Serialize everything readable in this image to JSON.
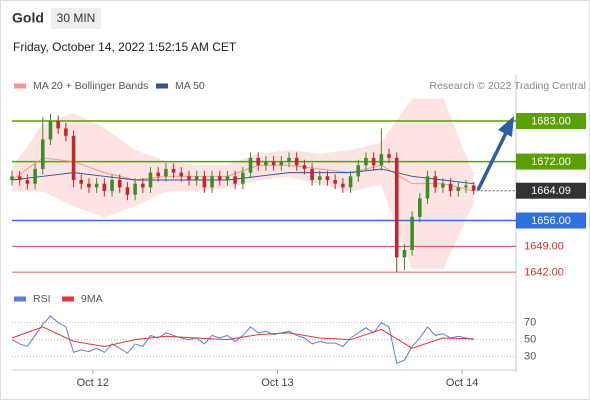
{
  "header": {
    "symbol": "Gold",
    "interval": "30 MIN",
    "timestamp": "Friday, October 14, 2022 1:52:15 AM CET"
  },
  "chart_data": [
    {
      "type": "candlestick",
      "source": "Research © 2022 Trading Central",
      "xlim": [
        0,
        131
      ],
      "ylim": [
        1638.5,
        1695.5
      ],
      "up_color": "#3d8b2a",
      "down_color": "#c0282d",
      "x": [
        0,
        2,
        4,
        6,
        8,
        10,
        12,
        14,
        16,
        18,
        20,
        22,
        24,
        26,
        28,
        30,
        32,
        34,
        36,
        38,
        40,
        42,
        44,
        46,
        48,
        50,
        52,
        54,
        56,
        58,
        60,
        62,
        64,
        66,
        68,
        70,
        72,
        74,
        76,
        78,
        80,
        82,
        84,
        86,
        88,
        90,
        92,
        94,
        96,
        98,
        100,
        102,
        104,
        106,
        108,
        110,
        112,
        114,
        116,
        118,
        120
      ],
      "open": [
        1667,
        1668,
        1667,
        1666,
        1670,
        1678,
        1683,
        1681,
        1679,
        1667,
        1666,
        1665,
        1666,
        1664,
        1667,
        1665,
        1663,
        1666,
        1665,
        1669,
        1668,
        1670,
        1669,
        1668,
        1667,
        1668,
        1665,
        1668,
        1667,
        1668,
        1666,
        1669,
        1673,
        1671,
        1672,
        1671,
        1672,
        1673,
        1671,
        1670,
        1667,
        1668,
        1667,
        1666,
        1665,
        1668,
        1671,
        1673,
        1671,
        1674,
        1673,
        1646,
        1648,
        1657,
        1662,
        1668,
        1665,
        1666,
        1664,
        1665,
        1665.5
      ],
      "high": [
        1669.5,
        1669.5,
        1668.5,
        1671.5,
        1684,
        1685,
        1684.5,
        1682.5,
        1680.5,
        1668.5,
        1667.5,
        1667.5,
        1667.5,
        1668.5,
        1668.5,
        1666.5,
        1667.5,
        1667.5,
        1670.5,
        1670.5,
        1671.5,
        1671.5,
        1670.5,
        1669.5,
        1669.5,
        1669.5,
        1669.5,
        1669.5,
        1669.5,
        1669.5,
        1670.5,
        1674.5,
        1674.5,
        1673.5,
        1673.5,
        1673.5,
        1674.5,
        1674.5,
        1672.5,
        1671.5,
        1669.5,
        1669.5,
        1668.5,
        1667.5,
        1669.5,
        1672.5,
        1674.5,
        1674.5,
        1681,
        1675.5,
        1674.5,
        1649.5,
        1658.5,
        1663.5,
        1669.5,
        1669.5,
        1667.5,
        1667.5,
        1666.5,
        1667,
        1666.5
      ],
      "low": [
        1665.5,
        1665.5,
        1664.5,
        1664.5,
        1668.5,
        1676.5,
        1679.5,
        1677.5,
        1665,
        1664.5,
        1663.5,
        1663.5,
        1662.5,
        1662.5,
        1663.5,
        1661.5,
        1661.5,
        1663.5,
        1663.5,
        1666.5,
        1666.5,
        1667.5,
        1666.5,
        1665.5,
        1665.5,
        1663.5,
        1663.5,
        1665.5,
        1665.5,
        1664.5,
        1664.5,
        1667.5,
        1669.5,
        1669.5,
        1669.5,
        1669.5,
        1670.5,
        1669.5,
        1668.5,
        1665.5,
        1665.5,
        1665.5,
        1664.5,
        1663.5,
        1663.5,
        1666.5,
        1669.5,
        1669.5,
        1669.5,
        1671.5,
        1642,
        1642.5,
        1646.5,
        1655.5,
        1660.5,
        1663.5,
        1663.5,
        1662.5,
        1662.5,
        1663.5,
        1663
      ],
      "close": [
        1668,
        1667,
        1666,
        1670,
        1678,
        1683,
        1681,
        1679,
        1667,
        1666,
        1665,
        1666,
        1664,
        1667,
        1665,
        1663,
        1666,
        1665,
        1669,
        1668,
        1670,
        1669,
        1668,
        1667,
        1668,
        1665,
        1668,
        1667,
        1668,
        1666,
        1669,
        1673,
        1671,
        1672,
        1671,
        1672,
        1673,
        1671,
        1670,
        1667,
        1668,
        1667,
        1666,
        1665,
        1668,
        1671,
        1673,
        1671,
        1674,
        1673,
        1646,
        1648,
        1657,
        1662,
        1668,
        1665,
        1666,
        1664,
        1665,
        1665.5,
        1664.09
      ],
      "last_price": 1664.09,
      "series": [
        {
          "name": "MA 20 + Bollinger Bands",
          "color": "#f4978e",
          "band_color": "#fde3e1",
          "x": [
            0,
            8,
            16,
            24,
            32,
            40,
            48,
            56,
            64,
            72,
            80,
            88,
            96,
            104,
            112,
            120
          ],
          "values": [
            1667,
            1673,
            1672,
            1669,
            1667,
            1668,
            1668,
            1668,
            1671,
            1671,
            1670,
            1669,
            1671,
            1666,
            1666,
            1664
          ],
          "upper": [
            1670,
            1682,
            1685,
            1681,
            1675,
            1672,
            1671,
            1671,
            1674,
            1675,
            1674,
            1675,
            1677,
            1689,
            1689,
            1668
          ],
          "lower": [
            1664,
            1664,
            1660,
            1657,
            1660,
            1664,
            1664,
            1665,
            1667,
            1668,
            1666,
            1664,
            1666,
            1643,
            1643,
            1661
          ]
        },
        {
          "name": "MA 50",
          "color": "#2c5597",
          "x": [
            0,
            8,
            16,
            24,
            32,
            40,
            48,
            56,
            64,
            72,
            80,
            88,
            96,
            104,
            112,
            120
          ],
          "values": [
            1667,
            1668,
            1669,
            1668,
            1667,
            1667,
            1667,
            1667,
            1668,
            1669,
            1669,
            1669,
            1670,
            1668,
            1667,
            1666
          ]
        }
      ],
      "levels": [
        {
          "value": 1683,
          "label": "1683.00",
          "color": "#5aa000",
          "boxed": true
        },
        {
          "value": 1672,
          "label": "1672.00",
          "color": "#5aa000",
          "boxed": true
        },
        {
          "value": 1656,
          "label": "1656.00",
          "color": "#2f6fe0",
          "boxed": true
        },
        {
          "value": 1649,
          "label": "1649.00",
          "color": "#d32f2f",
          "boxed": false
        },
        {
          "value": 1642,
          "label": "1642.00",
          "color": "#d32f2f",
          "boxed": false
        }
      ]
    },
    {
      "type": "line",
      "xlim": [
        0,
        131
      ],
      "ylim": [
        19,
        92
      ],
      "yticks": [
        30,
        50,
        70
      ],
      "xticks": [
        {
          "value": 21,
          "label": "Oct 12"
        },
        {
          "value": 69,
          "label": "Oct 13"
        },
        {
          "value": 117,
          "label": "Oct 14"
        }
      ],
      "series": [
        {
          "name": "RSI",
          "color": "#5b7fd6",
          "x": [
            0,
            2,
            4,
            6,
            8,
            10,
            12,
            14,
            16,
            18,
            20,
            22,
            24,
            26,
            28,
            30,
            32,
            34,
            36,
            38,
            40,
            42,
            44,
            46,
            48,
            50,
            52,
            54,
            56,
            58,
            60,
            62,
            64,
            66,
            68,
            70,
            72,
            74,
            76,
            78,
            80,
            82,
            84,
            86,
            88,
            90,
            92,
            94,
            96,
            98,
            100,
            102,
            104,
            106,
            108,
            110,
            112,
            114,
            116,
            118,
            120
          ],
          "values": [
            50,
            45,
            42,
            55,
            68,
            78,
            70,
            65,
            35,
            38,
            36,
            40,
            35,
            45,
            40,
            34,
            45,
            42,
            55,
            52,
            58,
            55,
            52,
            50,
            52,
            45,
            55,
            52,
            55,
            48,
            55,
            65,
            58,
            60,
            56,
            58,
            60,
            55,
            52,
            45,
            48,
            46,
            46,
            42,
            52,
            58,
            64,
            58,
            70,
            65,
            22,
            26,
            42,
            52,
            65,
            55,
            57,
            52,
            54,
            52,
            50
          ]
        },
        {
          "name": "9MA",
          "color": "#e53935",
          "x": [
            0,
            8,
            16,
            24,
            32,
            40,
            48,
            56,
            64,
            72,
            80,
            88,
            96,
            104,
            112,
            120
          ],
          "values": [
            52,
            65,
            48,
            42,
            50,
            54,
            52,
            50,
            56,
            58,
            52,
            50,
            62,
            40,
            52,
            51
          ]
        }
      ]
    }
  ]
}
